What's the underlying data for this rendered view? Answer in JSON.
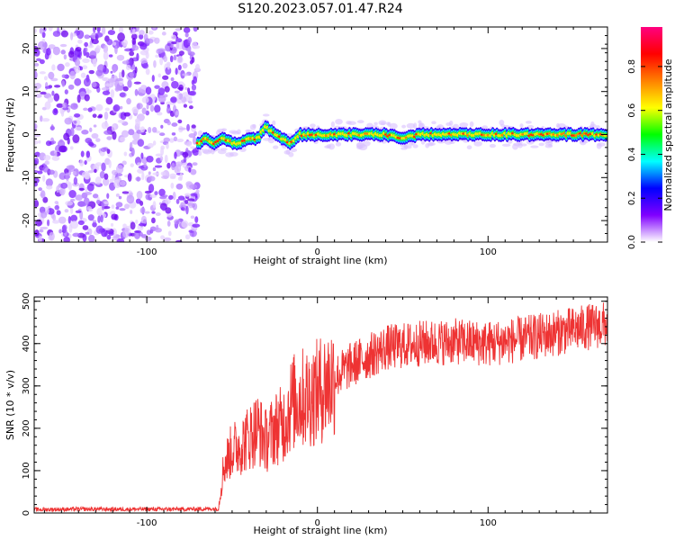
{
  "figure": {
    "title": "S120.2023.057.01.47.R24"
  },
  "chart_data": [
    {
      "type": "heatmap",
      "xlabel": "Height of straight line (km)",
      "ylabel": "Frequency (Hz)",
      "xlim": [
        -166,
        170
      ],
      "ylim": [
        -25,
        25
      ],
      "x_ticks": [
        -100,
        0,
        100
      ],
      "y_ticks": [
        -20,
        -10,
        0,
        10,
        20
      ],
      "noise_region_x": [
        -166,
        -70
      ],
      "signal_track": {
        "x": [
          -70,
          -65,
          -60,
          -55,
          -50,
          -45,
          -40,
          -35,
          -30,
          -28,
          -25,
          -20,
          -15,
          -10,
          0,
          10,
          20,
          30,
          40,
          50,
          60,
          70,
          80,
          90,
          100,
          110,
          120,
          130,
          140,
          150,
          160,
          170
        ],
        "freq": [
          -2,
          -1,
          -2,
          -1,
          -2,
          -2,
          -1,
          -1,
          2,
          1,
          0,
          -1,
          -2,
          0,
          0,
          0,
          0,
          0,
          0,
          -1,
          0,
          0,
          0,
          0,
          0,
          0,
          0,
          0,
          0,
          0,
          0,
          0
        ]
      },
      "colorbar": {
        "label": "Normalized spectral amplitude",
        "ticks": [
          0.0,
          0.2,
          0.4,
          0.6,
          0.8
        ],
        "range": [
          0,
          0.98
        ],
        "colors": [
          "#ffffff",
          "#8000ff",
          "#0000ff",
          "#00ffff",
          "#00ff00",
          "#ffff00",
          "#ff8000",
          "#ff0000",
          "#ff0080"
        ]
      }
    },
    {
      "type": "line",
      "xlabel": "Height of straight line (km)",
      "ylabel": "SNR (10 * v/v)",
      "xlim": [
        -166,
        170
      ],
      "ylim": [
        0,
        510
      ],
      "x_ticks": [
        -100,
        0,
        100
      ],
      "y_ticks": [
        0,
        100,
        200,
        300,
        400,
        500
      ],
      "color": "#ee3333",
      "series": [
        {
          "x": [
            -166,
            -140,
            -110,
            -80,
            -58,
            -55,
            -50,
            -45,
            -40,
            -35,
            -30,
            -25,
            -20,
            -15,
            -10,
            -5,
            0,
            10,
            20,
            40,
            60,
            80,
            100,
            120,
            140,
            160,
            170
          ],
          "values": [
            8,
            9,
            9,
            9,
            10,
            110,
            150,
            160,
            180,
            200,
            170,
            200,
            210,
            260,
            270,
            275,
            285,
            320,
            350,
            390,
            400,
            405,
            400,
            410,
            425,
            440,
            445
          ]
        }
      ]
    }
  ]
}
